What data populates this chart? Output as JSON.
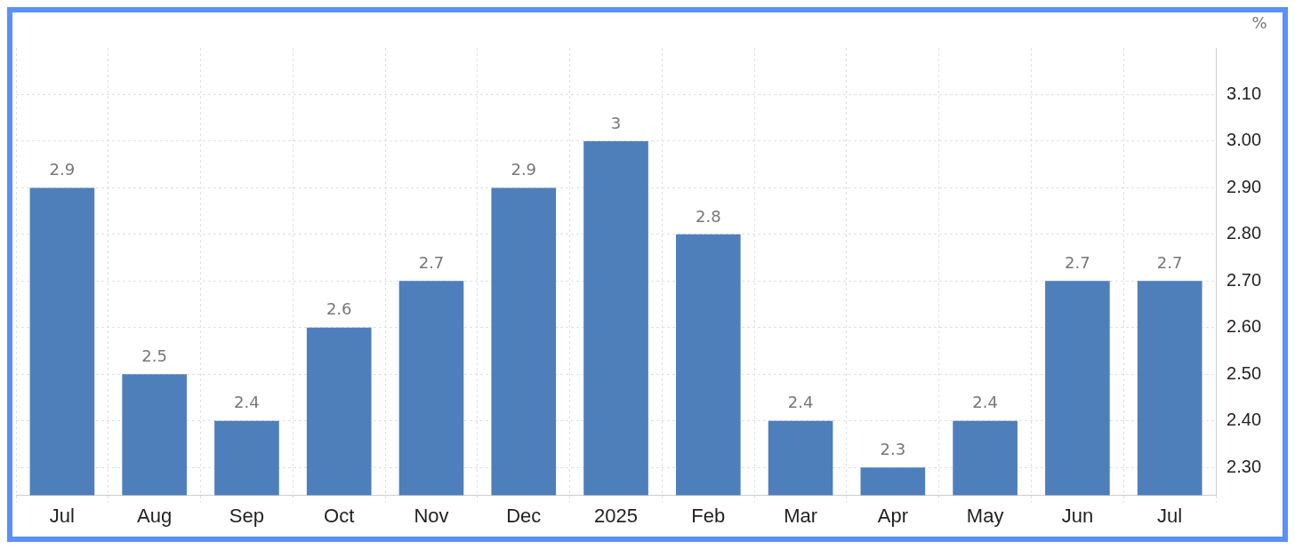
{
  "chart_data": {
    "type": "bar",
    "ylabel": "%",
    "categories": [
      "Jul",
      "Aug",
      "Sep",
      "Oct",
      "Nov",
      "Dec",
      "2025",
      "Feb",
      "Mar",
      "Apr",
      "May",
      "Jun",
      "Jul"
    ],
    "values": [
      2.9,
      2.5,
      2.4,
      2.6,
      2.7,
      2.9,
      3,
      2.8,
      2.4,
      2.3,
      2.4,
      2.7,
      2.7
    ],
    "color": "#4e7fbb",
    "ylim": [
      2.24,
      3.2
    ],
    "yticks": [
      {
        "value": 2.3,
        "label": "2.30"
      },
      {
        "value": 2.4,
        "label": "2.40"
      },
      {
        "value": 2.5,
        "label": "2.50"
      },
      {
        "value": 2.6,
        "label": "2.60"
      },
      {
        "value": 2.7,
        "label": "2.70"
      },
      {
        "value": 2.8,
        "label": "2.80"
      },
      {
        "value": 2.9,
        "label": "2.90"
      },
      {
        "value": 3.0,
        "label": "3.00"
      },
      {
        "value": 3.1,
        "label": "3.10"
      }
    ],
    "grid": true,
    "data_labels": true,
    "legend": false
  }
}
